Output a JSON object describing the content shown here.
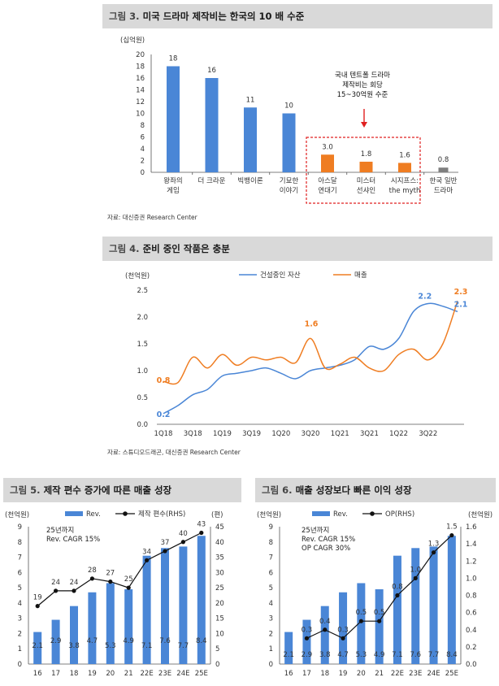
{
  "colors": {
    "blue": "#4a86d6",
    "orange": "#ef7d22",
    "gray": "#7f7f7f",
    "dashed_red": "#e02020",
    "header_bg": "#d9d9d9",
    "line_black": "#111111"
  },
  "fig3": {
    "title_num": "그림 3.",
    "title": "미국 드라마 제작비는 한국의 10 배 수준",
    "source": "자료: 대신증권 Research Center",
    "annotation": [
      "국내 텐트폴 드라마",
      "제작비는 회당",
      "15~30억원 수준"
    ],
    "arrow_icon": "down-arrow-icon"
  },
  "fig4": {
    "title_num": "그림 4.",
    "title": "준비 중인 작품은 충분",
    "source": "자료: 스튜디오드래곤, 대신증권 Research Center",
    "point_labels": {
      "asset_start": "0.2",
      "asset_end": "2.2",
      "asset_last": "2.1",
      "sales_start": "0.8",
      "sales_peak": "1.6",
      "sales_end": "2.3"
    }
  },
  "fig5": {
    "title_num": "그림 5.",
    "title": "제작 편수 증가에 따른 매출 성장",
    "note": [
      "25년까지",
      "Rev. CAGR 15%"
    ]
  },
  "fig6": {
    "title_num": "그림 6.",
    "title": "매출 성장보다 빠른 이익 성장",
    "note": [
      "25년까지",
      "Rev. CAGR 15%",
      "OP CAGR 30%"
    ]
  },
  "chart_data": [
    {
      "id": "fig3",
      "type": "bar",
      "ylabel": "(십억원)",
      "ylim": [
        0,
        20
      ],
      "yticks": [
        0,
        2,
        4,
        6,
        8,
        10,
        12,
        14,
        16,
        18,
        20
      ],
      "categories": [
        [
          "왕좌의",
          "게임"
        ],
        [
          "더 크라운"
        ],
        [
          "빅뱅이론"
        ],
        [
          "기묘한",
          "이야기"
        ],
        [
          "아스달",
          "연대기"
        ],
        [
          "미스터",
          "선샤인"
        ],
        [
          "시지프스:",
          "the myth"
        ],
        [
          "한국 일반",
          "드라마"
        ]
      ],
      "values": [
        18,
        16,
        11,
        10,
        3.0,
        1.8,
        1.6,
        0.8
      ],
      "value_labels": [
        "18",
        "16",
        "11",
        "10",
        "3.0",
        "1.8",
        "1.6",
        "0.8"
      ],
      "bar_colors": [
        "blue",
        "blue",
        "blue",
        "blue",
        "orange",
        "orange",
        "orange",
        "gray"
      ],
      "grid": false
    },
    {
      "id": "fig4",
      "type": "line",
      "ylabel": "(천억원)",
      "ylim": [
        0,
        2.5
      ],
      "yticks": [
        "0.0",
        "0.5",
        "1.0",
        "1.5",
        "2.0",
        "2.5"
      ],
      "x_ticks": [
        "1Q18",
        "3Q18",
        "1Q19",
        "3Q19",
        "1Q20",
        "3Q20",
        "1Q21",
        "3Q21",
        "1Q22",
        "3Q22"
      ],
      "legend": "top",
      "series": [
        {
          "name": "건설중인 자산",
          "color": "blue",
          "values": [
            0.2,
            0.35,
            0.55,
            0.65,
            0.9,
            0.95,
            1.0,
            1.05,
            0.95,
            0.85,
            1.0,
            1.05,
            1.1,
            1.2,
            1.45,
            1.4,
            1.6,
            2.1,
            2.25,
            2.2,
            2.1
          ]
        },
        {
          "name": "매출",
          "color": "orange",
          "values": [
            0.8,
            0.78,
            1.25,
            1.05,
            1.3,
            1.1,
            1.25,
            1.2,
            1.25,
            1.15,
            1.6,
            1.05,
            1.12,
            1.25,
            1.05,
            1.0,
            1.3,
            1.4,
            1.2,
            1.5,
            2.3
          ]
        }
      ]
    },
    {
      "id": "fig5",
      "type": "bar+line",
      "y_left_label": "(천억원)",
      "y_right_label": "(편)",
      "ylim_left": [
        0,
        9
      ],
      "ylim_right": [
        0,
        45
      ],
      "categories": [
        "16",
        "17",
        "18",
        "19",
        "20",
        "21",
        "22E",
        "23E",
        "24E",
        "25E"
      ],
      "series": [
        {
          "name": "Rev.",
          "type": "bar",
          "axis": "left",
          "color": "blue",
          "values": [
            2.1,
            2.9,
            3.8,
            4.7,
            5.3,
            4.9,
            7.1,
            7.6,
            7.7,
            8.4
          ]
        },
        {
          "name": "제작 편수(RHS)",
          "type": "line",
          "axis": "right",
          "color": "line_black",
          "values": [
            19,
            24,
            24,
            28,
            27,
            25,
            34,
            37,
            40,
            43
          ]
        }
      ]
    },
    {
      "id": "fig6",
      "type": "bar+line",
      "y_left_label": "(천억원)",
      "y_right_label": "(천억원)",
      "ylim_left": [
        0,
        9
      ],
      "ylim_right": [
        0,
        1.6
      ],
      "categories": [
        "16",
        "17",
        "18",
        "19",
        "20",
        "21",
        "22E",
        "23E",
        "24E",
        "25E"
      ],
      "series": [
        {
          "name": "Rev.",
          "type": "bar",
          "axis": "left",
          "color": "blue",
          "values": [
            2.1,
            2.9,
            3.8,
            4.7,
            5.3,
            4.9,
            7.1,
            7.6,
            7.7,
            8.4
          ]
        },
        {
          "name": "OP(RHS)",
          "type": "line",
          "axis": "right",
          "color": "line_black",
          "values": [
            null,
            0.3,
            0.4,
            0.3,
            0.5,
            0.5,
            0.8,
            1.0,
            1.3,
            1.5
          ]
        }
      ]
    }
  ]
}
